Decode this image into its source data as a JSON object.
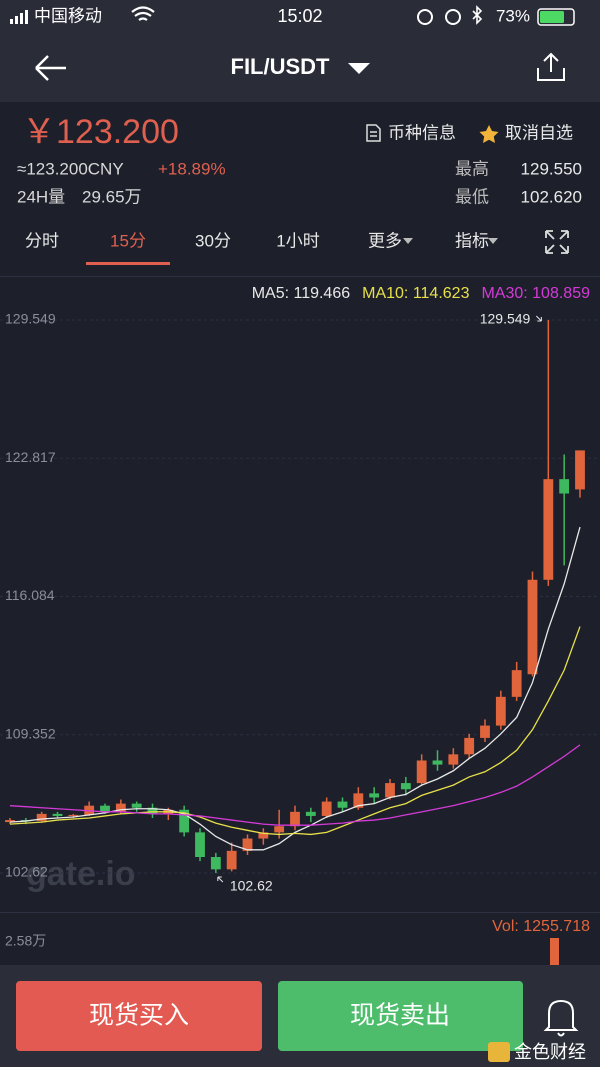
{
  "status_bar": {
    "carrier": "中国移动",
    "time": "15:02",
    "battery": "73%"
  },
  "header": {
    "title": "FIL/USDT"
  },
  "ticker": {
    "price": "￥123.200",
    "cny": "≈123.200CNY",
    "change": "+18.89%",
    "volume_label": "24H量",
    "volume": "29.65万",
    "info": "币种信息",
    "favorite": "取消自选",
    "high_label": "最高",
    "high": "129.550",
    "low_label": "最低",
    "low": "102.620"
  },
  "tabs": [
    "分时",
    "15分",
    "30分",
    "1小时",
    "更多",
    "指标"
  ],
  "chart_data": {
    "type": "candlestick",
    "up_color": "#e0653c",
    "down_color": "#3fb95f",
    "ylim": [
      100.82,
      130.28
    ],
    "yticks": [
      129.549,
      122.817,
      116.084,
      109.352,
      102.62
    ],
    "grid": true,
    "open": [
      105.1,
      105.2,
      105.15,
      105.5,
      105.4,
      105.45,
      105.9,
      105.6,
      106.0,
      105.8,
      105.5,
      105.7,
      104.6,
      103.4,
      102.8,
      103.7,
      104.3,
      104.6,
      104.9,
      105.6,
      105.4,
      106.1,
      105.8,
      106.5,
      106.3,
      107.0,
      107.0,
      108.1,
      107.9,
      108.4,
      109.2,
      109.8,
      111.2,
      112.3,
      116.9,
      121.8,
      121.3
    ],
    "high": [
      105.3,
      105.3,
      105.6,
      105.6,
      105.5,
      106.1,
      106.0,
      106.2,
      106.1,
      106.0,
      105.8,
      105.9,
      104.8,
      103.6,
      104.1,
      104.5,
      104.8,
      105.7,
      105.9,
      105.8,
      106.3,
      106.3,
      106.8,
      106.8,
      107.2,
      107.3,
      108.4,
      108.6,
      108.7,
      109.4,
      110.1,
      111.5,
      112.9,
      117.3,
      129.549,
      123.0,
      123.2
    ],
    "low": [
      105.0,
      105.0,
      105.1,
      105.3,
      105.3,
      105.4,
      105.5,
      105.5,
      105.6,
      105.3,
      105.2,
      104.4,
      103.2,
      102.62,
      102.7,
      103.5,
      104.0,
      104.3,
      104.7,
      105.1,
      105.3,
      105.6,
      105.7,
      106.0,
      106.2,
      106.4,
      106.9,
      107.6,
      107.7,
      108.2,
      109.0,
      109.6,
      111.0,
      112.2,
      116.6,
      117.6,
      120.9
    ],
    "close": [
      105.2,
      105.15,
      105.5,
      105.4,
      105.45,
      105.9,
      105.6,
      106.0,
      105.8,
      105.5,
      105.7,
      104.6,
      103.4,
      102.8,
      103.7,
      104.3,
      104.6,
      104.9,
      105.6,
      105.4,
      106.1,
      105.8,
      106.5,
      106.3,
      107.0,
      106.7,
      108.1,
      107.9,
      108.4,
      109.2,
      109.8,
      111.2,
      112.5,
      116.9,
      121.8,
      121.1,
      123.2
    ],
    "lines": [
      {
        "label": "MA5: 119.466",
        "color": "#e8e8e8",
        "values": [
          105.1,
          105.15,
          105.25,
          105.3,
          105.35,
          105.45,
          105.55,
          105.7,
          105.75,
          105.75,
          105.7,
          105.5,
          105.0,
          104.4,
          104.0,
          103.75,
          103.75,
          104.05,
          104.6,
          104.95,
          105.35,
          105.6,
          105.9,
          106.0,
          106.3,
          106.45,
          106.9,
          107.2,
          107.6,
          108.2,
          108.7,
          109.4,
          110.2,
          111.9,
          114.5,
          116.7,
          119.466
        ]
      },
      {
        "label": "MA10: 114.623",
        "color": "#e8e04a",
        "values": [
          105.0,
          105.05,
          105.1,
          105.2,
          105.25,
          105.3,
          105.4,
          105.5,
          105.55,
          105.6,
          105.6,
          105.55,
          105.35,
          105.05,
          104.85,
          104.7,
          104.55,
          104.5,
          104.55,
          104.5,
          104.6,
          104.9,
          105.2,
          105.5,
          105.8,
          106.0,
          106.4,
          106.65,
          106.9,
          107.3,
          107.55,
          108.0,
          108.6,
          109.6,
          111.0,
          112.5,
          114.623
        ]
      },
      {
        "label": "MA30: 108.859",
        "color": "#d43ad8",
        "values": [
          105.9,
          105.85,
          105.8,
          105.75,
          105.7,
          105.65,
          105.6,
          105.6,
          105.55,
          105.5,
          105.5,
          105.45,
          105.4,
          105.3,
          105.2,
          105.1,
          105.0,
          104.95,
          104.95,
          104.95,
          105.0,
          105.05,
          105.15,
          105.2,
          105.3,
          105.45,
          105.6,
          105.75,
          105.9,
          106.1,
          106.3,
          106.55,
          106.85,
          107.3,
          107.8,
          108.3,
          108.859
        ]
      }
    ],
    "high_marker": "129.549",
    "low_marker": "102.62",
    "volume_label": "Vol: 1255.718",
    "volume_tick": "2.58万"
  },
  "buttons": {
    "buy": "现货买入",
    "sell": "现货卖出"
  },
  "watermark": "gate.io",
  "footer_logo": "金色财经"
}
